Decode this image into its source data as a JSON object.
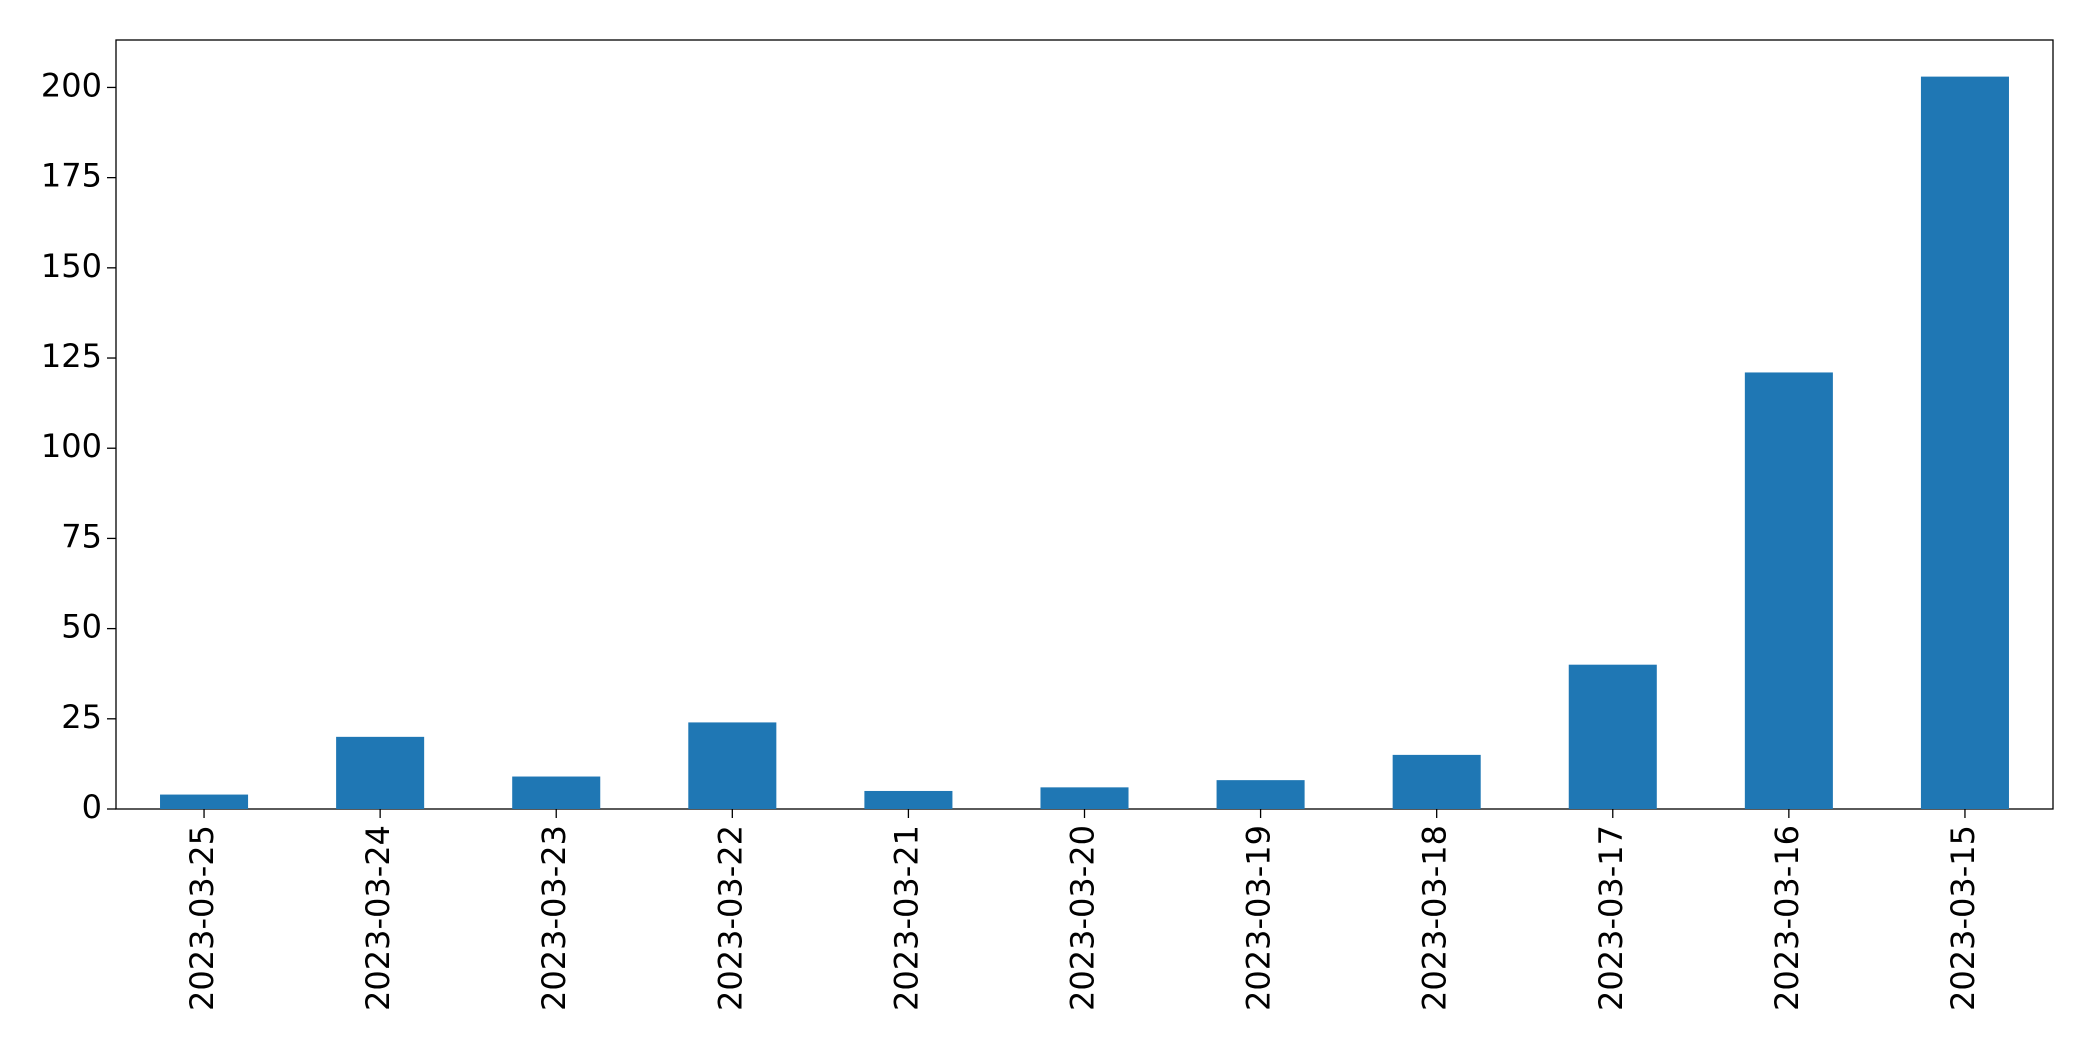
{
  "chart_data": {
    "type": "bar",
    "categories": [
      "2023-03-25",
      "2023-03-24",
      "2023-03-23",
      "2023-03-22",
      "2023-03-21",
      "2023-03-20",
      "2023-03-19",
      "2023-03-18",
      "2023-03-17",
      "2023-03-16",
      "2023-03-15"
    ],
    "values": [
      4,
      20,
      9,
      24,
      5,
      6,
      8,
      15,
      40,
      121,
      203
    ],
    "color": "#1f77b4",
    "ylim": [
      0,
      213.15
    ],
    "yticks": [
      0,
      25,
      50,
      75,
      100,
      125,
      150,
      175,
      200
    ],
    "grid": false
  }
}
